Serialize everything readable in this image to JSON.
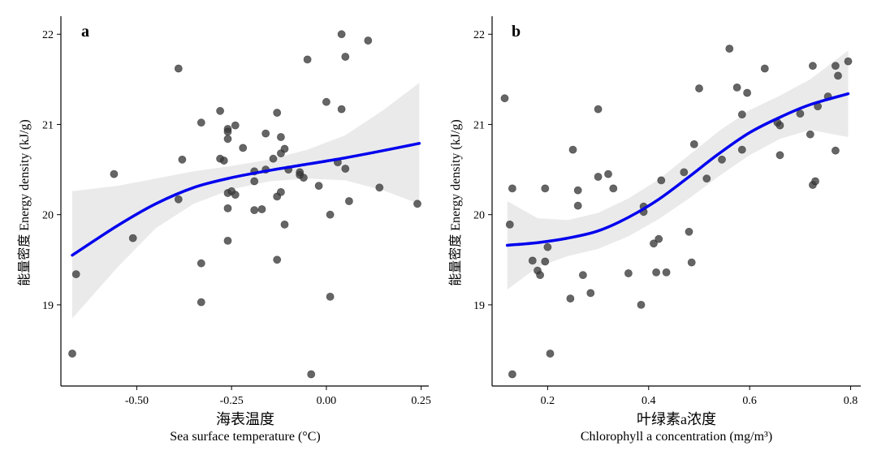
{
  "chart_data": [
    {
      "type": "scatter",
      "panel_label": "a",
      "xlabel_cn": "海表温度",
      "xlabel_en": "Sea surface temperature (°C)",
      "ylabel": "能量密度 Energy density (kJ/g)",
      "xlim": [
        -0.7,
        0.27
      ],
      "ylim": [
        18.1,
        22.2
      ],
      "xticks": [
        -0.5,
        -0.25,
        0.0,
        0.25
      ],
      "xtick_labels": [
        "-0.50",
        "-0.25",
        "0.00",
        "0.25"
      ],
      "yticks": [
        19,
        20,
        21,
        22
      ],
      "ytick_labels": [
        "19",
        "20",
        "21",
        "22"
      ],
      "points": [
        {
          "x": -0.67,
          "y": 18.46
        },
        {
          "x": -0.66,
          "y": 19.34
        },
        {
          "x": -0.56,
          "y": 20.45
        },
        {
          "x": -0.51,
          "y": 19.74
        },
        {
          "x": -0.39,
          "y": 21.62
        },
        {
          "x": -0.39,
          "y": 20.17
        },
        {
          "x": -0.38,
          "y": 20.61
        },
        {
          "x": -0.33,
          "y": 21.02
        },
        {
          "x": -0.33,
          "y": 19.46
        },
        {
          "x": -0.33,
          "y": 19.03
        },
        {
          "x": -0.28,
          "y": 21.15
        },
        {
          "x": -0.28,
          "y": 20.62
        },
        {
          "x": -0.27,
          "y": 20.6
        },
        {
          "x": -0.26,
          "y": 20.95
        },
        {
          "x": -0.26,
          "y": 20.92
        },
        {
          "x": -0.26,
          "y": 20.84
        },
        {
          "x": -0.26,
          "y": 20.24
        },
        {
          "x": -0.26,
          "y": 20.07
        },
        {
          "x": -0.26,
          "y": 19.71
        },
        {
          "x": -0.25,
          "y": 20.26
        },
        {
          "x": -0.24,
          "y": 20.99
        },
        {
          "x": -0.24,
          "y": 20.22
        },
        {
          "x": -0.22,
          "y": 20.74
        },
        {
          "x": -0.19,
          "y": 20.48
        },
        {
          "x": -0.19,
          "y": 20.37
        },
        {
          "x": -0.19,
          "y": 20.05
        },
        {
          "x": -0.17,
          "y": 20.06
        },
        {
          "x": -0.16,
          "y": 20.9
        },
        {
          "x": -0.16,
          "y": 20.5
        },
        {
          "x": -0.14,
          "y": 20.62
        },
        {
          "x": -0.13,
          "y": 21.13
        },
        {
          "x": -0.13,
          "y": 20.2
        },
        {
          "x": -0.13,
          "y": 19.5
        },
        {
          "x": -0.12,
          "y": 20.86
        },
        {
          "x": -0.12,
          "y": 20.68
        },
        {
          "x": -0.12,
          "y": 20.25
        },
        {
          "x": -0.11,
          "y": 20.73
        },
        {
          "x": -0.11,
          "y": 19.89
        },
        {
          "x": -0.1,
          "y": 20.5
        },
        {
          "x": -0.07,
          "y": 20.47
        },
        {
          "x": -0.07,
          "y": 20.44
        },
        {
          "x": -0.06,
          "y": 20.41
        },
        {
          "x": -0.05,
          "y": 21.72
        },
        {
          "x": -0.04,
          "y": 18.23
        },
        {
          "x": -0.02,
          "y": 20.32
        },
        {
          "x": 0.0,
          "y": 21.25
        },
        {
          "x": 0.01,
          "y": 20.0
        },
        {
          "x": 0.01,
          "y": 19.09
        },
        {
          "x": 0.03,
          "y": 20.58
        },
        {
          "x": 0.04,
          "y": 22.0
        },
        {
          "x": 0.04,
          "y": 21.17
        },
        {
          "x": 0.05,
          "y": 21.75
        },
        {
          "x": 0.05,
          "y": 20.51
        },
        {
          "x": 0.06,
          "y": 20.15
        },
        {
          "x": 0.11,
          "y": 21.93
        },
        {
          "x": 0.14,
          "y": 20.3
        },
        {
          "x": 0.24,
          "y": 20.12
        }
      ],
      "fit": [
        {
          "x": -0.67,
          "y": 19.55,
          "lo": 18.85,
          "hi": 20.26
        },
        {
          "x": -0.55,
          "y": 19.88,
          "lo": 19.42,
          "hi": 20.32
        },
        {
          "x": -0.45,
          "y": 20.12,
          "lo": 19.85,
          "hi": 20.4
        },
        {
          "x": -0.35,
          "y": 20.3,
          "lo": 20.12,
          "hi": 20.48
        },
        {
          "x": -0.25,
          "y": 20.41,
          "lo": 20.28,
          "hi": 20.54
        },
        {
          "x": -0.15,
          "y": 20.49,
          "lo": 20.37,
          "hi": 20.61
        },
        {
          "x": -0.05,
          "y": 20.56,
          "lo": 20.4,
          "hi": 20.72
        },
        {
          "x": 0.05,
          "y": 20.63,
          "lo": 20.38,
          "hi": 20.88
        },
        {
          "x": 0.15,
          "y": 20.71,
          "lo": 20.27,
          "hi": 21.16
        },
        {
          "x": 0.245,
          "y": 20.79,
          "lo": 20.12,
          "hi": 21.46
        }
      ],
      "colors": {
        "points": "#3a3a3a",
        "fit_line": "#0000ee",
        "band": "#d9d9d9"
      }
    },
    {
      "type": "scatter",
      "panel_label": "b",
      "xlabel_cn": "叶绿素a浓度",
      "xlabel_en": "Chlorophyll a concentration (mg/m³)",
      "ylabel": "能量密度 Energy density (kJ/g)",
      "xlim": [
        0.09,
        0.82
      ],
      "ylim": [
        18.1,
        22.2
      ],
      "xticks": [
        0.2,
        0.4,
        0.6,
        0.8
      ],
      "xtick_labels": [
        "0.2",
        "0.4",
        "0.6",
        "0.8"
      ],
      "yticks": [
        19,
        20,
        21,
        22
      ],
      "ytick_labels": [
        "19",
        "20",
        "21",
        "22"
      ],
      "points": [
        {
          "x": 0.115,
          "y": 21.29
        },
        {
          "x": 0.125,
          "y": 19.89
        },
        {
          "x": 0.13,
          "y": 20.29
        },
        {
          "x": 0.13,
          "y": 18.23
        },
        {
          "x": 0.17,
          "y": 19.49
        },
        {
          "x": 0.18,
          "y": 19.38
        },
        {
          "x": 0.185,
          "y": 19.33
        },
        {
          "x": 0.195,
          "y": 19.48
        },
        {
          "x": 0.195,
          "y": 20.29
        },
        {
          "x": 0.2,
          "y": 19.64
        },
        {
          "x": 0.205,
          "y": 18.46
        },
        {
          "x": 0.245,
          "y": 19.07
        },
        {
          "x": 0.25,
          "y": 20.72
        },
        {
          "x": 0.26,
          "y": 20.27
        },
        {
          "x": 0.26,
          "y": 20.1
        },
        {
          "x": 0.27,
          "y": 19.33
        },
        {
          "x": 0.285,
          "y": 19.13
        },
        {
          "x": 0.3,
          "y": 21.17
        },
        {
          "x": 0.3,
          "y": 20.42
        },
        {
          "x": 0.32,
          "y": 20.45
        },
        {
          "x": 0.33,
          "y": 20.29
        },
        {
          "x": 0.36,
          "y": 19.35
        },
        {
          "x": 0.385,
          "y": 19.0
        },
        {
          "x": 0.39,
          "y": 20.09
        },
        {
          "x": 0.39,
          "y": 20.03
        },
        {
          "x": 0.41,
          "y": 19.68
        },
        {
          "x": 0.415,
          "y": 19.36
        },
        {
          "x": 0.42,
          "y": 19.73
        },
        {
          "x": 0.425,
          "y": 20.38
        },
        {
          "x": 0.435,
          "y": 19.36
        },
        {
          "x": 0.47,
          "y": 20.47
        },
        {
          "x": 0.48,
          "y": 19.81
        },
        {
          "x": 0.485,
          "y": 19.47
        },
        {
          "x": 0.49,
          "y": 20.78
        },
        {
          "x": 0.5,
          "y": 21.4
        },
        {
          "x": 0.515,
          "y": 20.4
        },
        {
          "x": 0.545,
          "y": 20.61
        },
        {
          "x": 0.56,
          "y": 21.84
        },
        {
          "x": 0.575,
          "y": 21.41
        },
        {
          "x": 0.585,
          "y": 21.11
        },
        {
          "x": 0.585,
          "y": 20.72
        },
        {
          "x": 0.595,
          "y": 21.35
        },
        {
          "x": 0.63,
          "y": 21.62
        },
        {
          "x": 0.655,
          "y": 21.02
        },
        {
          "x": 0.66,
          "y": 20.99
        },
        {
          "x": 0.66,
          "y": 20.66
        },
        {
          "x": 0.7,
          "y": 21.12
        },
        {
          "x": 0.72,
          "y": 20.89
        },
        {
          "x": 0.725,
          "y": 21.65
        },
        {
          "x": 0.725,
          "y": 20.33
        },
        {
          "x": 0.73,
          "y": 20.37
        },
        {
          "x": 0.735,
          "y": 21.2
        },
        {
          "x": 0.755,
          "y": 21.31
        },
        {
          "x": 0.77,
          "y": 20.71
        },
        {
          "x": 0.77,
          "y": 21.65
        },
        {
          "x": 0.775,
          "y": 21.54
        },
        {
          "x": 0.795,
          "y": 21.7
        }
      ],
      "fit": [
        {
          "x": 0.12,
          "y": 19.66,
          "lo": 19.17,
          "hi": 20.15
        },
        {
          "x": 0.18,
          "y": 19.69,
          "lo": 19.42,
          "hi": 19.96
        },
        {
          "x": 0.24,
          "y": 19.74,
          "lo": 19.54,
          "hi": 19.94
        },
        {
          "x": 0.3,
          "y": 19.82,
          "lo": 19.62,
          "hi": 20.02
        },
        {
          "x": 0.36,
          "y": 19.97,
          "lo": 19.76,
          "hi": 20.18
        },
        {
          "x": 0.42,
          "y": 20.17,
          "lo": 19.95,
          "hi": 20.39
        },
        {
          "x": 0.48,
          "y": 20.42,
          "lo": 20.18,
          "hi": 20.66
        },
        {
          "x": 0.54,
          "y": 20.68,
          "lo": 20.43,
          "hi": 20.93
        },
        {
          "x": 0.6,
          "y": 20.91,
          "lo": 20.66,
          "hi": 21.16
        },
        {
          "x": 0.66,
          "y": 21.08,
          "lo": 20.84,
          "hi": 21.32
        },
        {
          "x": 0.72,
          "y": 21.22,
          "lo": 20.94,
          "hi": 21.5
        },
        {
          "x": 0.795,
          "y": 21.34,
          "lo": 20.86,
          "hi": 21.82
        }
      ],
      "colors": {
        "points": "#3a3a3a",
        "fit_line": "#0000ee",
        "band": "#d9d9d9"
      }
    }
  ]
}
